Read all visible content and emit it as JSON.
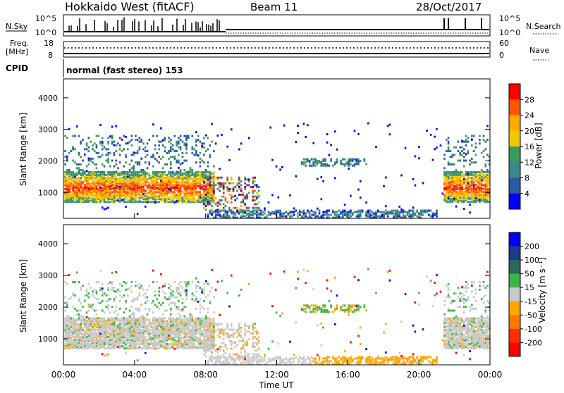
{
  "header": {
    "station": "Hokkaido West (fitACF)",
    "beam": "Beam 11",
    "date": "28/Oct/2017"
  },
  "aux": {
    "nsky_label": "N.Sky",
    "nsearch_label": "N.Search",
    "nsky_ticks": [
      "10^5",
      "10^0"
    ],
    "nsearch_ticks": [
      "10^5",
      "10^0"
    ],
    "freq_label_line1": "Freq.",
    "freq_label_line2": "[MHz]",
    "freq_ticks": [
      "18",
      "8"
    ],
    "nave_label": "Nave",
    "nave_ticks": [
      "60",
      "0"
    ],
    "cpid_label": "CPID",
    "cpid_text": "normal (fast stereo) 153"
  },
  "chart_data": [
    {
      "type": "heatmap",
      "quantity": "Power",
      "ylabel": "Slant Range [km]",
      "yticks": [
        "4000",
        "3000",
        "2000",
        "1000"
      ],
      "ylim": [
        180,
        4600
      ],
      "xlim": [
        0,
        24
      ],
      "colorbar_label": "Power [dB]",
      "colorbar_ticks": [
        "28",
        "24",
        "20",
        "16",
        "12",
        "8",
        "4"
      ],
      "colorbar_colors": [
        "#ff0000",
        "#ff5500",
        "#ffaa00",
        "#f0c800",
        "#3a9a60",
        "#3a8a8a",
        "#2a5aa0",
        "#0000ff"
      ]
    },
    {
      "type": "heatmap",
      "quantity": "Velocity",
      "ylabel": "Slant Range [km]",
      "yticks": [
        "4000",
        "3000",
        "2000",
        "1000"
      ],
      "ylim": [
        180,
        4600
      ],
      "xlim": [
        0,
        24
      ],
      "xlabel": "Time UT",
      "xticks": [
        "00:00",
        "04:00",
        "08:00",
        "12:00",
        "16:00",
        "20:00",
        "00:00"
      ],
      "colorbar_label": "Velocity [m s⁻¹]",
      "colorbar_ticks": [
        "200",
        "100",
        "50",
        "15",
        "-15",
        "-50",
        "-100",
        "-200"
      ],
      "colorbar_colors": [
        "#0000ff",
        "#1a3a8a",
        "#2a6a5a",
        "#39b54a",
        "#c8c8c8",
        "#ffa500",
        "#ff7800",
        "#ff3000",
        "#ff0000"
      ]
    }
  ]
}
